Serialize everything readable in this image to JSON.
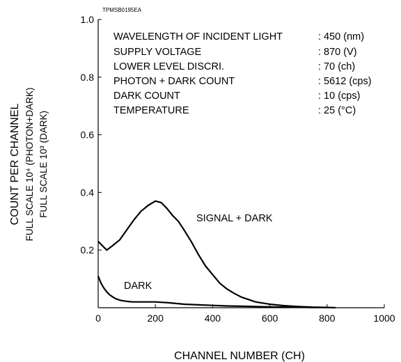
{
  "chart_data": {
    "type": "line",
    "code": "TPMSB0195EA",
    "xlabel": "CHANNEL  NUMBER (CH)",
    "ylabel": {
      "main": "COUNT  PER  CHANNEL",
      "sub1": "FULL  SCALE 10⁴  (PHOTON+DARK)",
      "sub2": "FULL  SCALE 10³  (DARK)"
    },
    "xlim": [
      0,
      1000
    ],
    "ylim": [
      0,
      1.0
    ],
    "x_ticks": [
      0,
      200,
      400,
      600,
      800,
      1000
    ],
    "y_ticks": [
      0.2,
      0.4,
      0.6,
      0.8,
      1.0
    ],
    "y_tick_labels": [
      "0.2",
      "0.4",
      "0.6",
      "0.8",
      "1.0"
    ],
    "grid": false,
    "conditions": [
      {
        "label": "WAVELENGTH OF INCIDENT LIGHT",
        "value": ": 450 (nm)"
      },
      {
        "label": "SUPPLY VOLTAGE",
        "value": ": 870 (V)"
      },
      {
        "label": "LOWER LEVEL DISCRI.",
        "value": ": 70 (ch)"
      },
      {
        "label": "PHOTON + DARK COUNT",
        "value": ": 5612 (cps)"
      },
      {
        "label": "DARK COUNT",
        "value": ": 10 (cps)"
      },
      {
        "label": "TEMPERATURE",
        "value": ": 25 (°C)"
      }
    ],
    "series": [
      {
        "name": "SIGNAL + DARK",
        "x": [
          0,
          20,
          30,
          50,
          75,
          100,
          125,
          150,
          175,
          200,
          220,
          240,
          260,
          280,
          300,
          325,
          350,
          375,
          400,
          425,
          450,
          475,
          500,
          550,
          600,
          650,
          700,
          750,
          800,
          830
        ],
        "y": [
          0.23,
          0.21,
          0.2,
          0.215,
          0.235,
          0.27,
          0.305,
          0.335,
          0.355,
          0.37,
          0.365,
          0.345,
          0.32,
          0.3,
          0.27,
          0.23,
          0.185,
          0.145,
          0.115,
          0.085,
          0.065,
          0.05,
          0.037,
          0.02,
          0.012,
          0.007,
          0.004,
          0.002,
          0.001,
          0.0
        ]
      },
      {
        "name": "DARK",
        "x": [
          0,
          10,
          20,
          30,
          40,
          50,
          60,
          70,
          80,
          100,
          120,
          150,
          200,
          250,
          300,
          350,
          400,
          450,
          500,
          550,
          600,
          650,
          700,
          750,
          800
        ],
        "y": [
          0.11,
          0.085,
          0.068,
          0.055,
          0.045,
          0.038,
          0.032,
          0.028,
          0.025,
          0.022,
          0.02,
          0.02,
          0.02,
          0.017,
          0.012,
          0.01,
          0.008,
          0.006,
          0.005,
          0.004,
          0.003,
          0.002,
          0.002,
          0.001,
          0.001
        ]
      }
    ]
  }
}
